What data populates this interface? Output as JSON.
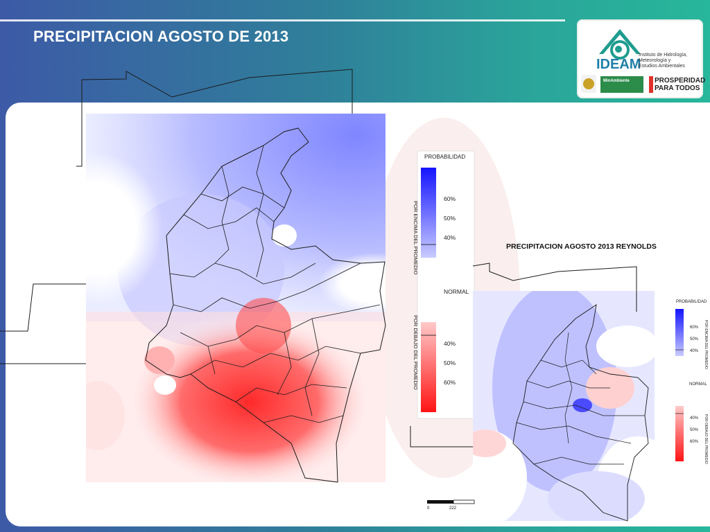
{
  "slide": {
    "title": "PRECIPITACION  AGOSTO DE 2013"
  },
  "logo": {
    "brand": "IDEAM",
    "subtitle_lines": [
      "Instituto de Hidrología,",
      "Meteorología y",
      "Estudios Ambientales"
    ],
    "ministry": "MinAmbiente",
    "slogan_lines": [
      "PROSPERIDAD",
      "PARA TODOS"
    ]
  },
  "legend_main": {
    "title": "PROBABILIDAD",
    "above_label": "POR ENCIMA DEL PROMEDIO",
    "below_label": "POR DEBAJO DEL PROMEDIO",
    "normal_label": "NORMAL",
    "above_ticks": [
      "60%",
      "50%",
      "40%"
    ],
    "below_ticks": [
      "40%",
      "50%",
      "60%"
    ]
  },
  "map2": {
    "title": "PRECIPITACION  AGOSTO 2013 REYNOLDS",
    "legend_title": "PROBABILIDAD",
    "above_label": "POR ENCIMA DEL PROMEDIO",
    "below_label": "POR DEBAJO DEL PROMEDIO",
    "normal_label": "NORMAL",
    "above_ticks": [
      "60%",
      "50%",
      "40%"
    ],
    "below_ticks": [
      "40%",
      "50%",
      "60%"
    ]
  },
  "scale": {
    "start": "0",
    "end": "222"
  },
  "colors": {
    "above": "#1a1aff",
    "below": "#ff1a1a",
    "normal": "#ffffff"
  }
}
